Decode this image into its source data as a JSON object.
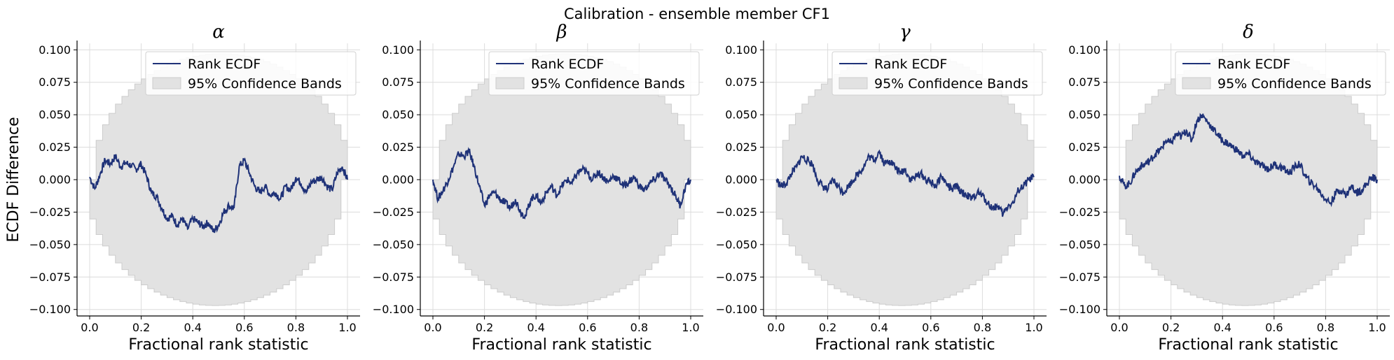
{
  "figure": {
    "title": "Calibration - ensemble member CF1"
  },
  "colors": {
    "line": "#1f3278",
    "band": "#e2e2e2",
    "band_edge": "#cccccc",
    "grid": "#dcdcdc",
    "axis": "#000000"
  },
  "chart_data": [
    {
      "type": "line",
      "title": "α",
      "xlabel": "Fractional rank statistic",
      "ylabel": "ECDF Difference",
      "xlim": [
        0,
        1
      ],
      "ylim": [
        -0.105,
        0.105
      ],
      "xticks": [
        "0.0",
        "0.2",
        "0.4",
        "0.6",
        "0.8",
        "1.0"
      ],
      "yticks": [
        "0.100",
        "0.075",
        "0.050",
        "0.025",
        "0.000",
        "−0.025",
        "−0.050",
        "−0.075",
        "−0.100"
      ],
      "grid": true,
      "legend": {
        "position": "top-right",
        "entries": [
          "Rank ECDF",
          "95% Confidence Bands"
        ]
      },
      "band_halfwidth_max": 0.097,
      "series": [
        {
          "name": "Rank ECDF",
          "x": [
            0,
            0.02,
            0.04,
            0.06,
            0.08,
            0.1,
            0.12,
            0.14,
            0.16,
            0.18,
            0.2,
            0.22,
            0.24,
            0.26,
            0.28,
            0.3,
            0.32,
            0.34,
            0.36,
            0.38,
            0.4,
            0.42,
            0.44,
            0.46,
            0.48,
            0.5,
            0.52,
            0.54,
            0.56,
            0.58,
            0.6,
            0.62,
            0.64,
            0.66,
            0.68,
            0.7,
            0.72,
            0.74,
            0.76,
            0.78,
            0.8,
            0.82,
            0.84,
            0.86,
            0.88,
            0.9,
            0.92,
            0.94,
            0.96,
            0.98,
            1.0
          ],
          "y": [
            0.002,
            -0.007,
            0.004,
            0.015,
            0.012,
            0.018,
            0.01,
            0.013,
            0.011,
            0.008,
            0.012,
            0.003,
            -0.01,
            -0.013,
            -0.022,
            -0.03,
            -0.028,
            -0.035,
            -0.03,
            -0.038,
            -0.03,
            -0.033,
            -0.036,
            -0.033,
            -0.04,
            -0.035,
            -0.025,
            -0.02,
            -0.022,
            0.01,
            0.015,
            0.005,
            -0.005,
            -0.01,
            -0.005,
            -0.012,
            -0.01,
            -0.015,
            -0.005,
            -0.008,
            0.002,
            -0.003,
            -0.01,
            -0.002,
            0.0,
            0.002,
            -0.005,
            -0.008,
            0.005,
            0.01,
            0.0
          ]
        }
      ]
    },
    {
      "type": "line",
      "title": "β",
      "xlabel": "Fractional rank statistic",
      "ylabel": "",
      "xlim": [
        0,
        1
      ],
      "ylim": [
        -0.105,
        0.105
      ],
      "xticks": [
        "0.0",
        "0.2",
        "0.4",
        "0.6",
        "0.8",
        "1.0"
      ],
      "yticks": [
        "0.100",
        "0.075",
        "0.050",
        "0.025",
        "0.000",
        "−0.025",
        "−0.050",
        "−0.075",
        "−0.100"
      ],
      "grid": true,
      "legend": {
        "position": "top-right",
        "entries": [
          "Rank ECDF",
          "95% Confidence Bands"
        ]
      },
      "band_halfwidth_max": 0.097,
      "series": [
        {
          "name": "Rank ECDF",
          "x": [
            0,
            0.02,
            0.04,
            0.06,
            0.08,
            0.1,
            0.12,
            0.14,
            0.16,
            0.18,
            0.2,
            0.22,
            0.24,
            0.26,
            0.28,
            0.3,
            0.32,
            0.34,
            0.36,
            0.38,
            0.4,
            0.42,
            0.44,
            0.46,
            0.48,
            0.5,
            0.52,
            0.54,
            0.56,
            0.58,
            0.6,
            0.62,
            0.64,
            0.66,
            0.68,
            0.7,
            0.72,
            0.74,
            0.76,
            0.78,
            0.8,
            0.82,
            0.84,
            0.86,
            0.88,
            0.9,
            0.92,
            0.94,
            0.96,
            0.98,
            1.0
          ],
          "y": [
            0.0,
            -0.015,
            -0.008,
            0.0,
            0.01,
            0.02,
            0.018,
            0.022,
            0.01,
            -0.005,
            -0.02,
            -0.012,
            -0.01,
            -0.015,
            -0.018,
            -0.022,
            -0.015,
            -0.025,
            -0.028,
            -0.015,
            -0.012,
            -0.018,
            -0.01,
            -0.005,
            -0.012,
            -0.005,
            0.0,
            -0.003,
            0.005,
            0.008,
            0.005,
            0.0,
            0.006,
            0.002,
            -0.002,
            0.003,
            0.0,
            -0.005,
            -0.002,
            0.002,
            -0.005,
            -0.008,
            -0.003,
            0.0,
            0.005,
            0.0,
            -0.005,
            -0.012,
            -0.02,
            -0.005,
            0.0
          ]
        }
      ]
    },
    {
      "type": "line",
      "title": "γ",
      "xlabel": "Fractional rank statistic",
      "ylabel": "",
      "xlim": [
        0,
        1
      ],
      "ylim": [
        -0.105,
        0.105
      ],
      "xticks": [
        "0.0",
        "0.2",
        "0.4",
        "0.6",
        "0.8",
        "1.0"
      ],
      "yticks": [
        "0.100",
        "0.075",
        "0.050",
        "0.025",
        "0.000",
        "−0.025",
        "−0.050",
        "−0.075",
        "−0.100"
      ],
      "grid": true,
      "legend": {
        "position": "top-right",
        "entries": [
          "Rank ECDF",
          "95% Confidence Bands"
        ]
      },
      "band_halfwidth_max": 0.097,
      "series": [
        {
          "name": "Rank ECDF",
          "x": [
            0,
            0.02,
            0.04,
            0.06,
            0.08,
            0.1,
            0.12,
            0.14,
            0.16,
            0.18,
            0.2,
            0.22,
            0.24,
            0.26,
            0.28,
            0.3,
            0.32,
            0.34,
            0.36,
            0.38,
            0.4,
            0.42,
            0.44,
            0.46,
            0.48,
            0.5,
            0.52,
            0.54,
            0.56,
            0.58,
            0.6,
            0.62,
            0.64,
            0.66,
            0.68,
            0.7,
            0.72,
            0.74,
            0.76,
            0.78,
            0.8,
            0.82,
            0.84,
            0.86,
            0.88,
            0.9,
            0.92,
            0.94,
            0.96,
            0.98,
            1.0
          ],
          "y": [
            0.0,
            -0.005,
            -0.003,
            0.005,
            0.01,
            0.018,
            0.015,
            0.012,
            0.0,
            -0.005,
            -0.008,
            0.0,
            -0.005,
            -0.01,
            -0.005,
            0.0,
            0.005,
            0.01,
            0.018,
            0.015,
            0.022,
            0.012,
            0.015,
            0.01,
            0.005,
            0.008,
            0.0,
            0.002,
            0.005,
            0.0,
            -0.002,
            -0.005,
            0.003,
            -0.003,
            -0.008,
            -0.005,
            -0.01,
            -0.012,
            -0.015,
            -0.01,
            -0.012,
            -0.018,
            -0.022,
            -0.02,
            -0.027,
            -0.02,
            -0.018,
            -0.008,
            -0.005,
            0.0,
            0.002
          ]
        }
      ]
    },
    {
      "type": "line",
      "title": "δ",
      "xlabel": "Fractional rank statistic",
      "ylabel": "",
      "xlim": [
        0,
        1
      ],
      "ylim": [
        -0.105,
        0.105
      ],
      "xticks": [
        "0.0",
        "0.2",
        "0.4",
        "0.6",
        "0.8",
        "1.0"
      ],
      "yticks": [
        "0.100",
        "0.075",
        "0.050",
        "0.025",
        "0.000",
        "−0.025",
        "−0.050",
        "−0.075",
        "−0.100"
      ],
      "grid": true,
      "legend": {
        "position": "top-right",
        "entries": [
          "Rank ECDF",
          "95% Confidence Bands"
        ]
      },
      "band_halfwidth_max": 0.097,
      "series": [
        {
          "name": "Rank ECDF",
          "x": [
            0,
            0.02,
            0.04,
            0.06,
            0.08,
            0.1,
            0.12,
            0.14,
            0.16,
            0.18,
            0.2,
            0.22,
            0.24,
            0.26,
            0.28,
            0.3,
            0.32,
            0.34,
            0.36,
            0.38,
            0.4,
            0.42,
            0.44,
            0.46,
            0.48,
            0.5,
            0.52,
            0.54,
            0.56,
            0.58,
            0.6,
            0.62,
            0.64,
            0.66,
            0.68,
            0.7,
            0.72,
            0.74,
            0.76,
            0.78,
            0.8,
            0.82,
            0.84,
            0.86,
            0.88,
            0.9,
            0.92,
            0.94,
            0.96,
            0.98,
            1.0
          ],
          "y": [
            0.003,
            -0.005,
            -0.003,
            0.005,
            0.01,
            0.012,
            0.015,
            0.02,
            0.023,
            0.03,
            0.028,
            0.035,
            0.033,
            0.038,
            0.03,
            0.045,
            0.05,
            0.045,
            0.04,
            0.035,
            0.03,
            0.028,
            0.025,
            0.022,
            0.018,
            0.02,
            0.015,
            0.012,
            0.01,
            0.008,
            0.012,
            0.01,
            0.008,
            0.005,
            0.01,
            0.012,
            0.003,
            -0.002,
            -0.005,
            -0.01,
            -0.015,
            -0.018,
            -0.01,
            -0.008,
            -0.012,
            -0.005,
            -0.01,
            -0.008,
            -0.003,
            0.002,
            0.0
          ]
        }
      ]
    }
  ]
}
